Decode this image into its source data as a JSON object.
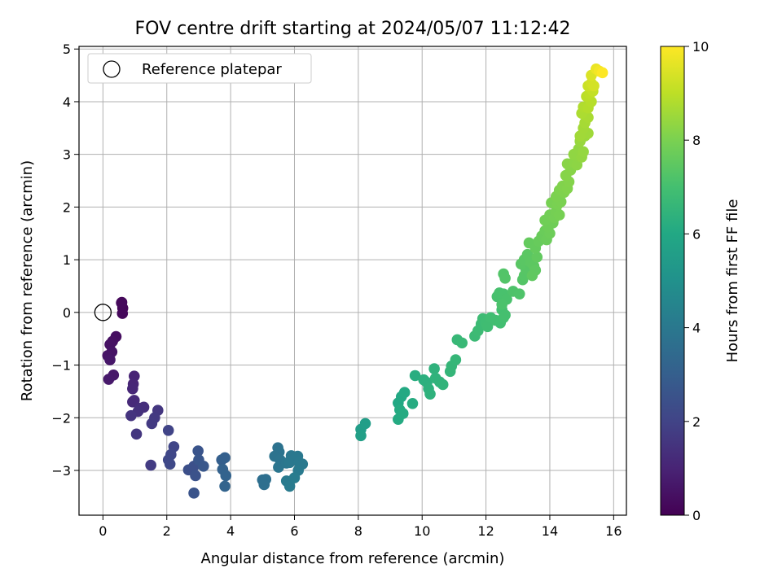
{
  "chart_data": {
    "type": "scatter",
    "title": "FOV centre drift starting at 2024/05/07 11:12:42",
    "xlabel": "Angular distance from reference (arcmin)",
    "ylabel": "Rotation from reference (arcmin)",
    "xlim": [
      -0.75,
      16.4
    ],
    "ylim": [
      -3.85,
      5.05
    ],
    "x_ticks": [
      0,
      2,
      4,
      6,
      8,
      10,
      12,
      14,
      16
    ],
    "y_ticks": [
      -3,
      -2,
      -1,
      0,
      1,
      2,
      3,
      4,
      5
    ],
    "grid": true,
    "legend": {
      "position": "top-left",
      "entries": [
        "Reference platepar"
      ]
    },
    "reference_point": {
      "x": 0,
      "y": 0,
      "name": "Reference platepar"
    },
    "colorbar": {
      "label": "Hours from first FF file",
      "range": [
        0,
        10
      ],
      "ticks": [
        0,
        2,
        4,
        6,
        8,
        10
      ],
      "colormap": "viridis"
    },
    "points": [
      {
        "x": 0.59,
        "y": 0.19,
        "c": 0.1
      },
      {
        "x": 0.62,
        "y": 0.08,
        "c": 0.15
      },
      {
        "x": 0.61,
        "y": -0.02,
        "c": 0.2
      },
      {
        "x": 0.58,
        "y": 0.18,
        "c": 0.22
      },
      {
        "x": 0.41,
        "y": -0.46,
        "c": 0.35
      },
      {
        "x": 0.3,
        "y": -0.55,
        "c": 0.4
      },
      {
        "x": 0.22,
        "y": -0.61,
        "c": 0.45
      },
      {
        "x": 0.28,
        "y": -0.75,
        "c": 0.5
      },
      {
        "x": 0.15,
        "y": -0.82,
        "c": 0.55
      },
      {
        "x": 0.22,
        "y": -0.9,
        "c": 0.6
      },
      {
        "x": 0.33,
        "y": -1.19,
        "c": 0.65
      },
      {
        "x": 0.18,
        "y": -1.27,
        "c": 0.7
      },
      {
        "x": 0.98,
        "y": -1.21,
        "c": 1.0
      },
      {
        "x": 0.95,
        "y": -1.36,
        "c": 1.05
      },
      {
        "x": 0.93,
        "y": -1.45,
        "c": 1.1
      },
      {
        "x": 0.98,
        "y": -1.67,
        "c": 1.15
      },
      {
        "x": 0.93,
        "y": -1.7,
        "c": 1.2
      },
      {
        "x": 1.15,
        "y": -1.82,
        "c": 1.3
      },
      {
        "x": 1.28,
        "y": -1.8,
        "c": 1.35
      },
      {
        "x": 1.1,
        "y": -1.88,
        "c": 1.4
      },
      {
        "x": 0.88,
        "y": -1.96,
        "c": 1.5
      },
      {
        "x": 1.05,
        "y": -2.31,
        "c": 1.55
      },
      {
        "x": 1.72,
        "y": -1.86,
        "c": 1.6
      },
      {
        "x": 1.62,
        "y": -2.0,
        "c": 1.65
      },
      {
        "x": 1.53,
        "y": -2.11,
        "c": 1.7
      },
      {
        "x": 1.5,
        "y": -2.9,
        "c": 1.75
      },
      {
        "x": 2.05,
        "y": -2.24,
        "c": 2.0
      },
      {
        "x": 2.22,
        "y": -2.55,
        "c": 2.05
      },
      {
        "x": 2.13,
        "y": -2.7,
        "c": 2.1
      },
      {
        "x": 2.05,
        "y": -2.8,
        "c": 2.15
      },
      {
        "x": 2.1,
        "y": -2.88,
        "c": 2.2
      },
      {
        "x": 2.68,
        "y": -2.99,
        "c": 2.4
      },
      {
        "x": 2.85,
        "y": -2.92,
        "c": 2.45
      },
      {
        "x": 2.9,
        "y": -3.1,
        "c": 2.5
      },
      {
        "x": 2.85,
        "y": -3.43,
        "c": 2.55
      },
      {
        "x": 2.98,
        "y": -2.63,
        "c": 2.6
      },
      {
        "x": 3.0,
        "y": -2.8,
        "c": 2.65
      },
      {
        "x": 3.15,
        "y": -2.92,
        "c": 2.7
      },
      {
        "x": 3.72,
        "y": -2.8,
        "c": 3.0
      },
      {
        "x": 3.82,
        "y": -2.76,
        "c": 3.05
      },
      {
        "x": 3.75,
        "y": -2.98,
        "c": 3.1
      },
      {
        "x": 3.85,
        "y": -3.1,
        "c": 3.15
      },
      {
        "x": 3.82,
        "y": -3.3,
        "c": 3.2
      },
      {
        "x": 5.0,
        "y": -3.18,
        "c": 3.6
      },
      {
        "x": 5.1,
        "y": -3.17,
        "c": 3.62
      },
      {
        "x": 5.05,
        "y": -3.27,
        "c": 3.65
      },
      {
        "x": 5.48,
        "y": -2.57,
        "c": 3.75
      },
      {
        "x": 5.52,
        "y": -2.65,
        "c": 3.78
      },
      {
        "x": 5.38,
        "y": -2.73,
        "c": 3.8
      },
      {
        "x": 5.55,
        "y": -2.8,
        "c": 3.85
      },
      {
        "x": 5.5,
        "y": -2.94,
        "c": 3.88
      },
      {
        "x": 5.75,
        "y": -2.86,
        "c": 3.92
      },
      {
        "x": 5.9,
        "y": -2.72,
        "c": 3.95
      },
      {
        "x": 5.85,
        "y": -2.85,
        "c": 3.98
      },
      {
        "x": 6.1,
        "y": -2.73,
        "c": 4.0
      },
      {
        "x": 6.15,
        "y": -2.85,
        "c": 4.03
      },
      {
        "x": 6.25,
        "y": -2.88,
        "c": 4.05
      },
      {
        "x": 6.12,
        "y": -3.0,
        "c": 4.08
      },
      {
        "x": 5.75,
        "y": -3.2,
        "c": 4.1
      },
      {
        "x": 5.85,
        "y": -3.3,
        "c": 4.12
      },
      {
        "x": 6.0,
        "y": -3.14,
        "c": 4.15
      },
      {
        "x": 8.08,
        "y": -2.22,
        "c": 5.5
      },
      {
        "x": 8.22,
        "y": -2.11,
        "c": 5.55
      },
      {
        "x": 8.08,
        "y": -2.34,
        "c": 5.6
      },
      {
        "x": 9.25,
        "y": -1.72,
        "c": 6.0
      },
      {
        "x": 9.35,
        "y": -1.6,
        "c": 6.02
      },
      {
        "x": 9.45,
        "y": -1.52,
        "c": 6.05
      },
      {
        "x": 9.3,
        "y": -1.85,
        "c": 6.08
      },
      {
        "x": 9.25,
        "y": -2.03,
        "c": 6.1
      },
      {
        "x": 9.4,
        "y": -1.92,
        "c": 6.12
      },
      {
        "x": 9.7,
        "y": -1.73,
        "c": 6.15
      },
      {
        "x": 9.78,
        "y": -1.2,
        "c": 6.2
      },
      {
        "x": 10.05,
        "y": -1.28,
        "c": 6.3
      },
      {
        "x": 10.15,
        "y": -1.33,
        "c": 6.32
      },
      {
        "x": 10.2,
        "y": -1.45,
        "c": 6.35
      },
      {
        "x": 10.25,
        "y": -1.55,
        "c": 6.38
      },
      {
        "x": 10.38,
        "y": -1.07,
        "c": 6.4
      },
      {
        "x": 10.42,
        "y": -1.25,
        "c": 6.42
      },
      {
        "x": 10.55,
        "y": -1.32,
        "c": 6.45
      },
      {
        "x": 10.65,
        "y": -1.37,
        "c": 6.48
      },
      {
        "x": 10.88,
        "y": -1.12,
        "c": 6.55
      },
      {
        "x": 10.92,
        "y": -1.02,
        "c": 6.58
      },
      {
        "x": 11.05,
        "y": -0.9,
        "c": 6.6
      },
      {
        "x": 11.1,
        "y": -0.52,
        "c": 6.65
      },
      {
        "x": 11.25,
        "y": -0.58,
        "c": 6.68
      },
      {
        "x": 11.65,
        "y": -0.45,
        "c": 6.75
      },
      {
        "x": 11.75,
        "y": -0.35,
        "c": 6.78
      },
      {
        "x": 11.85,
        "y": -0.22,
        "c": 6.8
      },
      {
        "x": 11.9,
        "y": -0.12,
        "c": 6.82
      },
      {
        "x": 12.0,
        "y": -0.2,
        "c": 6.85
      },
      {
        "x": 12.05,
        "y": -0.27,
        "c": 6.88
      },
      {
        "x": 12.15,
        "y": -0.1,
        "c": 6.9
      },
      {
        "x": 12.3,
        "y": -0.15,
        "c": 6.93
      },
      {
        "x": 12.45,
        "y": -0.2,
        "c": 6.95
      },
      {
        "x": 12.55,
        "y": -0.1,
        "c": 6.98
      },
      {
        "x": 12.5,
        "y": 0.05,
        "c": 7.0
      },
      {
        "x": 12.6,
        "y": -0.05,
        "c": 7.02
      },
      {
        "x": 12.35,
        "y": 0.3,
        "c": 7.05
      },
      {
        "x": 12.42,
        "y": 0.37,
        "c": 7.08
      },
      {
        "x": 12.55,
        "y": 0.35,
        "c": 7.1
      },
      {
        "x": 12.65,
        "y": 0.25,
        "c": 7.12
      },
      {
        "x": 12.5,
        "y": 0.15,
        "c": 7.14
      },
      {
        "x": 12.85,
        "y": 0.4,
        "c": 7.18
      },
      {
        "x": 13.05,
        "y": 0.35,
        "c": 7.2
      },
      {
        "x": 12.55,
        "y": 0.73,
        "c": 7.25
      },
      {
        "x": 12.6,
        "y": 0.65,
        "c": 7.27
      },
      {
        "x": 13.15,
        "y": 0.62,
        "c": 7.3
      },
      {
        "x": 13.2,
        "y": 0.7,
        "c": 7.32
      },
      {
        "x": 13.25,
        "y": 0.82,
        "c": 7.35
      },
      {
        "x": 13.1,
        "y": 0.92,
        "c": 7.38
      },
      {
        "x": 13.2,
        "y": 1.0,
        "c": 7.4
      },
      {
        "x": 13.3,
        "y": 1.1,
        "c": 7.42
      },
      {
        "x": 13.4,
        "y": 0.95,
        "c": 7.45
      },
      {
        "x": 13.5,
        "y": 0.88,
        "c": 7.47
      },
      {
        "x": 13.55,
        "y": 0.8,
        "c": 7.5
      },
      {
        "x": 13.45,
        "y": 0.7,
        "c": 7.52
      },
      {
        "x": 13.6,
        "y": 1.05,
        "c": 7.55
      },
      {
        "x": 13.35,
        "y": 1.32,
        "c": 7.6
      },
      {
        "x": 13.55,
        "y": 1.22,
        "c": 7.62
      },
      {
        "x": 13.65,
        "y": 1.35,
        "c": 7.65
      },
      {
        "x": 13.75,
        "y": 1.45,
        "c": 7.68
      },
      {
        "x": 13.85,
        "y": 1.55,
        "c": 7.7
      },
      {
        "x": 13.9,
        "y": 1.38,
        "c": 7.72
      },
      {
        "x": 14.0,
        "y": 1.5,
        "c": 7.75
      },
      {
        "x": 13.95,
        "y": 1.62,
        "c": 7.78
      },
      {
        "x": 14.1,
        "y": 1.7,
        "c": 7.8
      },
      {
        "x": 13.85,
        "y": 1.75,
        "c": 7.82
      },
      {
        "x": 14.0,
        "y": 1.85,
        "c": 7.85
      },
      {
        "x": 14.15,
        "y": 1.8,
        "c": 7.88
      },
      {
        "x": 14.2,
        "y": 1.92,
        "c": 7.9
      },
      {
        "x": 14.3,
        "y": 1.85,
        "c": 7.92
      },
      {
        "x": 14.05,
        "y": 2.08,
        "c": 7.95
      },
      {
        "x": 14.25,
        "y": 2.05,
        "c": 7.98
      },
      {
        "x": 14.35,
        "y": 2.1,
        "c": 8.0
      },
      {
        "x": 14.2,
        "y": 2.2,
        "c": 8.02
      },
      {
        "x": 14.3,
        "y": 2.32,
        "c": 8.05
      },
      {
        "x": 14.45,
        "y": 2.28,
        "c": 8.08
      },
      {
        "x": 14.4,
        "y": 2.4,
        "c": 8.1
      },
      {
        "x": 14.55,
        "y": 2.35,
        "c": 8.12
      },
      {
        "x": 14.6,
        "y": 2.48,
        "c": 8.15
      },
      {
        "x": 14.5,
        "y": 2.6,
        "c": 8.18
      },
      {
        "x": 14.65,
        "y": 2.7,
        "c": 8.2
      },
      {
        "x": 14.55,
        "y": 2.82,
        "c": 8.22
      },
      {
        "x": 14.75,
        "y": 2.85,
        "c": 8.25
      },
      {
        "x": 14.85,
        "y": 2.8,
        "c": 8.28
      },
      {
        "x": 14.9,
        "y": 2.95,
        "c": 8.3
      },
      {
        "x": 14.75,
        "y": 3.0,
        "c": 8.33
      },
      {
        "x": 14.9,
        "y": 3.1,
        "c": 8.35
      },
      {
        "x": 15.0,
        "y": 2.95,
        "c": 8.38
      },
      {
        "x": 15.05,
        "y": 3.05,
        "c": 8.4
      },
      {
        "x": 14.95,
        "y": 3.25,
        "c": 8.45
      },
      {
        "x": 15.1,
        "y": 3.35,
        "c": 8.5
      },
      {
        "x": 15.2,
        "y": 3.4,
        "c": 8.55
      },
      {
        "x": 14.95,
        "y": 3.35,
        "c": 8.58
      },
      {
        "x": 15.05,
        "y": 3.5,
        "c": 8.6
      },
      {
        "x": 15.1,
        "y": 3.6,
        "c": 8.65
      },
      {
        "x": 15.2,
        "y": 3.7,
        "c": 8.7
      },
      {
        "x": 15.0,
        "y": 3.78,
        "c": 8.75
      },
      {
        "x": 15.05,
        "y": 3.9,
        "c": 8.8
      },
      {
        "x": 15.2,
        "y": 3.88,
        "c": 8.85
      },
      {
        "x": 15.3,
        "y": 4.0,
        "c": 8.9
      },
      {
        "x": 15.15,
        "y": 4.1,
        "c": 8.95
      },
      {
        "x": 15.25,
        "y": 4.15,
        "c": 9.0
      },
      {
        "x": 15.35,
        "y": 4.2,
        "c": 9.1
      },
      {
        "x": 15.2,
        "y": 4.3,
        "c": 9.2
      },
      {
        "x": 15.3,
        "y": 4.35,
        "c": 9.3
      },
      {
        "x": 15.38,
        "y": 4.3,
        "c": 9.35
      },
      {
        "x": 15.3,
        "y": 4.5,
        "c": 9.45
      },
      {
        "x": 15.45,
        "y": 4.62,
        "c": 9.7
      },
      {
        "x": 15.55,
        "y": 4.58,
        "c": 9.85
      },
      {
        "x": 15.65,
        "y": 4.55,
        "c": 10.0
      }
    ]
  }
}
